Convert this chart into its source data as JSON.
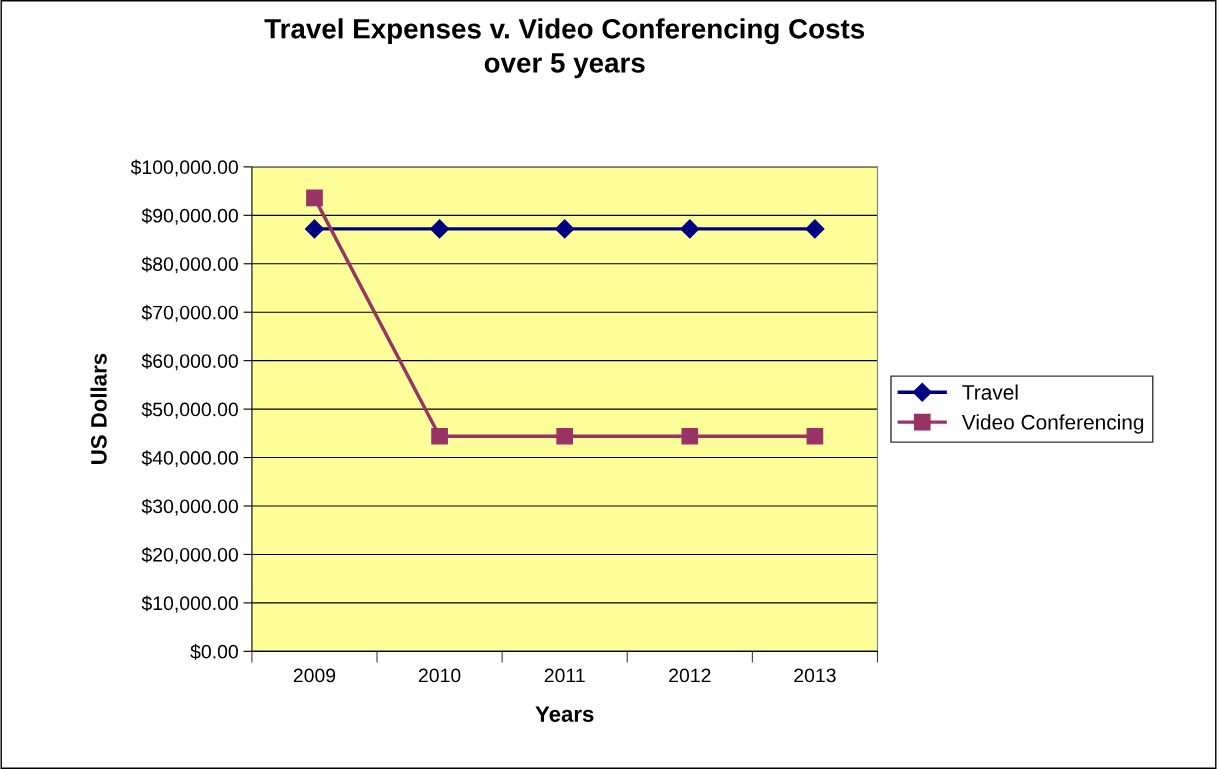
{
  "chart_data": {
    "type": "line",
    "title": "Travel Expenses v. Video Conferencing Costs\nover 5 years",
    "xlabel": "Years",
    "ylabel": "US Dollars",
    "categories": [
      "2009",
      "2010",
      "2011",
      "2012",
      "2013"
    ],
    "series": [
      {
        "name": "Travel",
        "color": "#000080",
        "values": [
          87200,
          87200,
          87200,
          87200,
          87200
        ],
        "marker": "diamond"
      },
      {
        "name": "Video Conferencing",
        "color": "#993366",
        "values": [
          93600,
          44400,
          44400,
          44400,
          44400
        ],
        "marker": "square"
      }
    ],
    "ylim": [
      0,
      100000
    ],
    "yticks": [
      {
        "value": 0,
        "label": "$0.00"
      },
      {
        "value": 10000,
        "label": "$10,000.00"
      },
      {
        "value": 20000,
        "label": "$20,000.00"
      },
      {
        "value": 30000,
        "label": "$30,000.00"
      },
      {
        "value": 40000,
        "label": "$40,000.00"
      },
      {
        "value": 50000,
        "label": "$50,000.00"
      },
      {
        "value": 60000,
        "label": "$60,000.00"
      },
      {
        "value": 70000,
        "label": "$70,000.00"
      },
      {
        "value": 80000,
        "label": "$80,000.00"
      },
      {
        "value": 90000,
        "label": "$90,000.00"
      },
      {
        "value": 100000,
        "label": "$100,000.00"
      }
    ],
    "grid": "y",
    "legend": "right",
    "line_style": "solid"
  }
}
